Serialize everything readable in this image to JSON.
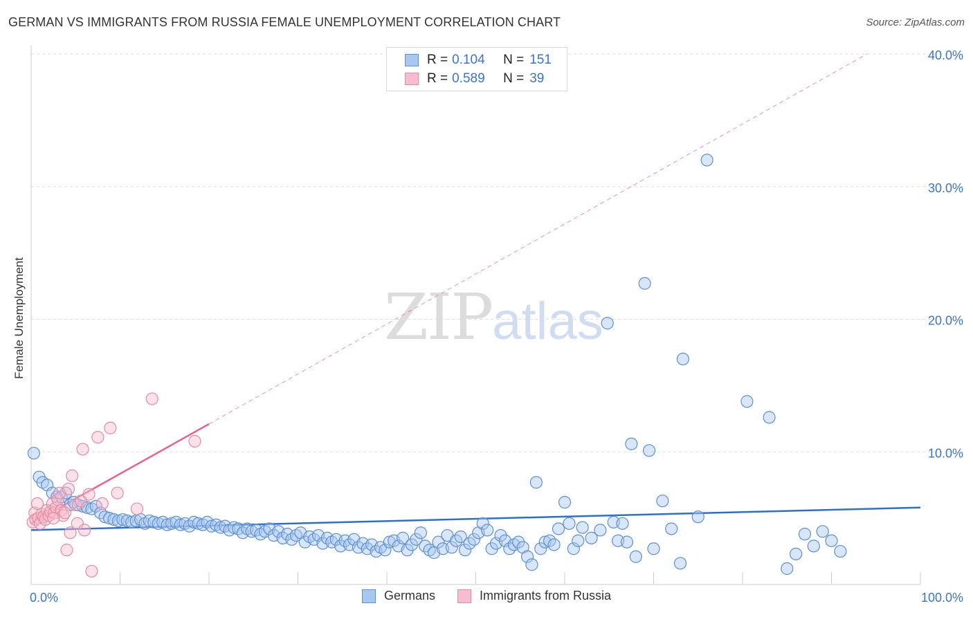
{
  "title": "GERMAN VS IMMIGRANTS FROM RUSSIA FEMALE UNEMPLOYMENT CORRELATION CHART",
  "source": "Source: ZipAtlas.com",
  "watermark": {
    "zip": "ZIP",
    "atlas": "atlas"
  },
  "legend_top": {
    "rows": [
      {
        "r_label": "R =",
        "r_value": "0.104",
        "n_label": "N =",
        "n_value": "151"
      },
      {
        "r_label": "R =",
        "r_value": "0.589",
        "n_label": "N =",
        "n_value": "39"
      }
    ]
  },
  "legend_bottom": {
    "germans": "Germans",
    "russia": "Immigrants from Russia"
  },
  "colors": {
    "germans_fill": "#a9c8f0",
    "germans_stroke": "#5b8fd6",
    "germans_line": "#2c6fd0",
    "russia_fill": "#f7bccd",
    "russia_stroke": "#e58aa5",
    "russia_line": "#e8628e",
    "axis_label": "#3a74cc",
    "grid": "#dddddd"
  },
  "chart_data": {
    "type": "scatter",
    "title": "GERMAN VS IMMIGRANTS FROM RUSSIA FEMALE UNEMPLOYMENT CORRELATION CHART",
    "xlabel": "",
    "ylabel": "Female Unemployment",
    "xlim": [
      0,
      100
    ],
    "ylim": [
      0,
      40
    ],
    "x_tick_labels": [
      "0.0%",
      "100.0%"
    ],
    "y_ticks": [
      10,
      20,
      30,
      40
    ],
    "y_tick_labels": [
      "10.0%",
      "20.0%",
      "30.0%",
      "40.0%"
    ],
    "grid": true,
    "series": [
      {
        "name": "Germans",
        "R": 0.104,
        "N": 151,
        "trend": {
          "x": [
            0,
            100
          ],
          "y": [
            4.1,
            5.8
          ]
        },
        "points": [
          [
            0.3,
            9.9
          ],
          [
            0.9,
            8.1
          ],
          [
            1.3,
            7.7
          ],
          [
            1.8,
            7.5
          ],
          [
            2.4,
            6.9
          ],
          [
            2.9,
            6.6
          ],
          [
            3.4,
            6.6
          ],
          [
            3.9,
            6.9
          ],
          [
            4.4,
            6.0
          ],
          [
            4.8,
            6.2
          ],
          [
            5.3,
            6.0
          ],
          [
            5.8,
            5.9
          ],
          [
            6.3,
            5.8
          ],
          [
            6.8,
            5.7
          ],
          [
            7.3,
            5.9
          ],
          [
            7.8,
            5.4
          ],
          [
            8.3,
            5.1
          ],
          [
            8.8,
            5.0
          ],
          [
            9.3,
            4.9
          ],
          [
            9.8,
            4.8
          ],
          [
            10.3,
            4.9
          ],
          [
            10.8,
            4.8
          ],
          [
            11.3,
            4.7
          ],
          [
            11.8,
            4.8
          ],
          [
            12.3,
            4.9
          ],
          [
            12.8,
            4.6
          ],
          [
            13.3,
            4.8
          ],
          [
            13.8,
            4.7
          ],
          [
            14.3,
            4.6
          ],
          [
            14.8,
            4.7
          ],
          [
            15.3,
            4.5
          ],
          [
            15.8,
            4.6
          ],
          [
            16.3,
            4.7
          ],
          [
            16.8,
            4.5
          ],
          [
            17.3,
            4.6
          ],
          [
            17.8,
            4.4
          ],
          [
            18.3,
            4.7
          ],
          [
            18.8,
            4.6
          ],
          [
            19.3,
            4.5
          ],
          [
            19.8,
            4.7
          ],
          [
            20.3,
            4.4
          ],
          [
            20.8,
            4.5
          ],
          [
            21.3,
            4.3
          ],
          [
            21.8,
            4.4
          ],
          [
            22.3,
            4.1
          ],
          [
            22.8,
            4.3
          ],
          [
            23.3,
            4.2
          ],
          [
            23.8,
            3.9
          ],
          [
            24.3,
            4.2
          ],
          [
            24.8,
            4.0
          ],
          [
            25.3,
            4.1
          ],
          [
            25.8,
            3.8
          ],
          [
            26.3,
            4.0
          ],
          [
            26.8,
            4.2
          ],
          [
            27.3,
            3.7
          ],
          [
            27.8,
            4.0
          ],
          [
            28.3,
            3.5
          ],
          [
            28.8,
            3.8
          ],
          [
            29.3,
            3.4
          ],
          [
            29.8,
            3.7
          ],
          [
            30.3,
            3.9
          ],
          [
            30.8,
            3.2
          ],
          [
            31.3,
            3.6
          ],
          [
            31.8,
            3.4
          ],
          [
            32.3,
            3.7
          ],
          [
            32.8,
            3.1
          ],
          [
            33.3,
            3.5
          ],
          [
            33.8,
            3.2
          ],
          [
            34.3,
            3.4
          ],
          [
            34.8,
            2.9
          ],
          [
            35.3,
            3.3
          ],
          [
            35.8,
            3.0
          ],
          [
            36.3,
            3.4
          ],
          [
            36.8,
            2.8
          ],
          [
            37.3,
            3.1
          ],
          [
            37.8,
            2.7
          ],
          [
            38.3,
            3.0
          ],
          [
            38.8,
            2.5
          ],
          [
            39.3,
            2.8
          ],
          [
            39.8,
            2.6
          ],
          [
            40.3,
            3.2
          ],
          [
            40.8,
            3.3
          ],
          [
            41.3,
            2.9
          ],
          [
            41.8,
            3.5
          ],
          [
            42.3,
            2.6
          ],
          [
            42.8,
            3.0
          ],
          [
            43.3,
            3.4
          ],
          [
            43.8,
            3.9
          ],
          [
            44.3,
            2.9
          ],
          [
            44.8,
            2.6
          ],
          [
            45.3,
            2.4
          ],
          [
            45.8,
            3.2
          ],
          [
            46.3,
            2.7
          ],
          [
            46.8,
            3.7
          ],
          [
            47.3,
            2.8
          ],
          [
            47.8,
            3.3
          ],
          [
            48.3,
            3.6
          ],
          [
            48.8,
            2.6
          ],
          [
            49.3,
            3.1
          ],
          [
            49.8,
            3.4
          ],
          [
            50.3,
            3.9
          ],
          [
            50.8,
            4.6
          ],
          [
            51.3,
            4.1
          ],
          [
            51.8,
            2.7
          ],
          [
            52.3,
            3.1
          ],
          [
            52.8,
            3.7
          ],
          [
            53.3,
            3.3
          ],
          [
            53.8,
            2.7
          ],
          [
            54.3,
            3.0
          ],
          [
            54.8,
            3.2
          ],
          [
            55.3,
            2.8
          ],
          [
            55.8,
            2.1
          ],
          [
            56.3,
            1.5
          ],
          [
            56.8,
            7.7
          ],
          [
            57.3,
            2.7
          ],
          [
            57.8,
            3.2
          ],
          [
            58.3,
            3.3
          ],
          [
            58.8,
            3.0
          ],
          [
            59.3,
            4.2
          ],
          [
            60.0,
            6.2
          ],
          [
            60.5,
            4.6
          ],
          [
            61.0,
            2.7
          ],
          [
            61.5,
            3.3
          ],
          [
            62.0,
            4.3
          ],
          [
            63.0,
            3.5
          ],
          [
            64.0,
            4.1
          ],
          [
            64.8,
            19.7
          ],
          [
            65.5,
            4.7
          ],
          [
            66.0,
            3.3
          ],
          [
            66.5,
            4.6
          ],
          [
            67.0,
            3.2
          ],
          [
            67.5,
            10.6
          ],
          [
            68.0,
            2.1
          ],
          [
            69.0,
            22.7
          ],
          [
            69.5,
            10.1
          ],
          [
            70.0,
            2.7
          ],
          [
            71.0,
            6.3
          ],
          [
            72.0,
            4.2
          ],
          [
            73.0,
            1.6
          ],
          [
            73.3,
            17.0
          ],
          [
            75.0,
            5.1
          ],
          [
            76.0,
            32.0
          ],
          [
            80.5,
            13.8
          ],
          [
            83.0,
            12.6
          ],
          [
            85.0,
            1.2
          ],
          [
            86.0,
            2.3
          ],
          [
            87.0,
            3.8
          ],
          [
            88.0,
            2.9
          ],
          [
            89.0,
            4.0
          ],
          [
            90.0,
            3.3
          ],
          [
            91.0,
            2.5
          ]
        ]
      },
      {
        "name": "Immigrants from Russia",
        "R": 0.589,
        "N": 39,
        "trend": {
          "x": [
            0,
            20
          ],
          "y": [
            4.6,
            12.1
          ]
        },
        "trend_extended": {
          "x": [
            20,
            94
          ],
          "y": [
            12.1,
            40
          ]
        },
        "points": [
          [
            0.2,
            4.7
          ],
          [
            0.4,
            5.4
          ],
          [
            0.5,
            4.9
          ],
          [
            0.7,
            6.1
          ],
          [
            0.8,
            5.0
          ],
          [
            1.0,
            4.6
          ],
          [
            1.2,
            5.3
          ],
          [
            1.4,
            5.1
          ],
          [
            1.6,
            4.9
          ],
          [
            1.8,
            5.6
          ],
          [
            2.0,
            5.2
          ],
          [
            2.2,
            5.5
          ],
          [
            2.4,
            6.1
          ],
          [
            2.6,
            5.4
          ],
          [
            2.8,
            5.8
          ],
          [
            3.0,
            6.4
          ],
          [
            3.2,
            6.9
          ],
          [
            3.4,
            5.6
          ],
          [
            3.6,
            5.2
          ],
          [
            3.8,
            5.4
          ],
          [
            4.0,
            2.6
          ],
          [
            4.2,
            7.2
          ],
          [
            4.4,
            3.9
          ],
          [
            4.6,
            8.2
          ],
          [
            5.0,
            6.0
          ],
          [
            5.2,
            4.6
          ],
          [
            5.6,
            6.3
          ],
          [
            5.8,
            10.2
          ],
          [
            6.0,
            4.1
          ],
          [
            6.5,
            6.8
          ],
          [
            6.8,
            1.0
          ],
          [
            7.5,
            11.1
          ],
          [
            8.0,
            6.1
          ],
          [
            8.9,
            11.8
          ],
          [
            9.7,
            6.9
          ],
          [
            11.9,
            5.7
          ],
          [
            13.6,
            14.0
          ],
          [
            18.4,
            10.8
          ],
          [
            2.5,
            5.0
          ]
        ]
      }
    ]
  }
}
